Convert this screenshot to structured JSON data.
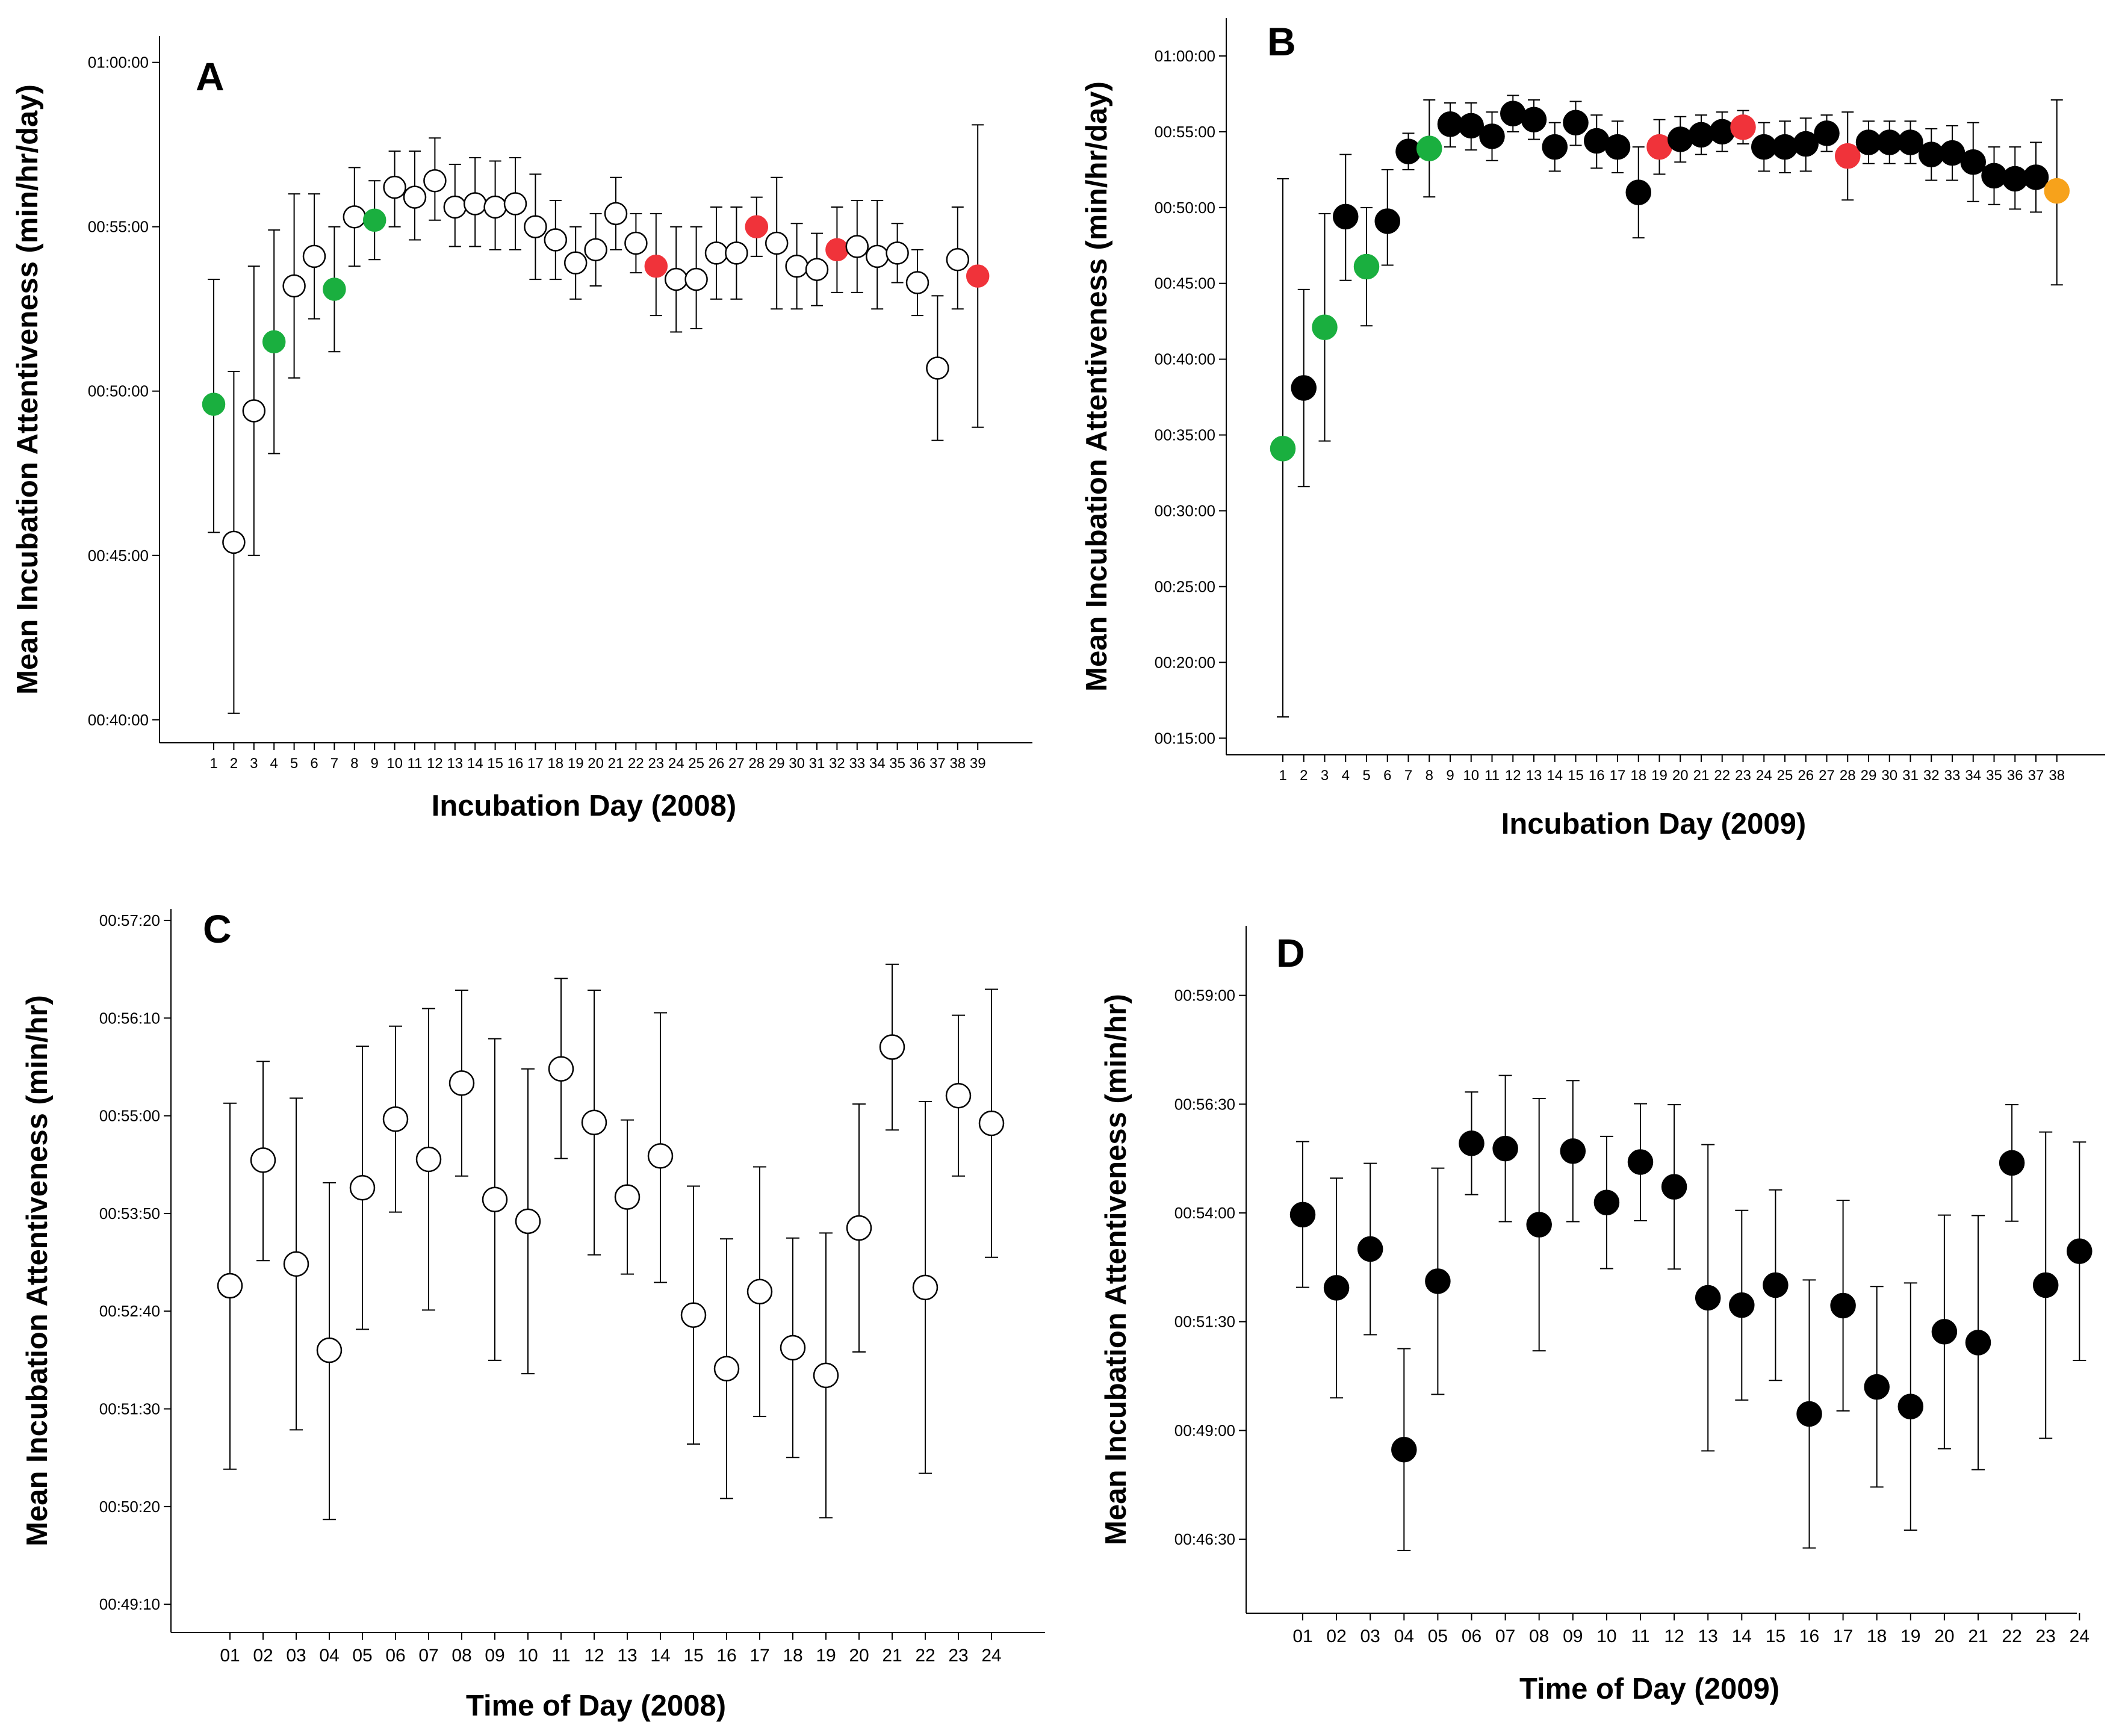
{
  "colors": {
    "open": "#ffffff",
    "filled": "#000000",
    "green": "#1aaf3f",
    "red": "#f0333a",
    "orange": "#f7a21b",
    "axis": "#000000"
  },
  "chart_data": [
    {
      "panel": "A",
      "type": "scatter",
      "title": "",
      "xlabel": "Incubation Day (2008)",
      "ylabel": "Mean Incubation Attentiveness (min/hr/day)",
      "y_unit": "minutes",
      "ylim": [
        39.3,
        60.8
      ],
      "yticks": [
        40,
        45,
        50,
        55,
        60
      ],
      "ytick_labels": [
        "00:40:00",
        "00:45:00",
        "00:50:00",
        "00:55:00",
        "01:00:00"
      ],
      "x": [
        "1",
        "2",
        "3",
        "4",
        "5",
        "6",
        "7",
        "8",
        "9",
        "10",
        "11",
        "12",
        "13",
        "14",
        "15",
        "16",
        "17",
        "18",
        "19",
        "20",
        "21",
        "22",
        "23",
        "24",
        "25",
        "26",
        "27",
        "28",
        "29",
        "30",
        "31",
        "32",
        "33",
        "34",
        "35",
        "36",
        "37",
        "38",
        "39"
      ],
      "values": [
        49.6,
        45.4,
        49.4,
        51.5,
        53.2,
        54.1,
        53.1,
        55.3,
        55.2,
        56.2,
        55.9,
        56.4,
        55.6,
        55.7,
        55.6,
        55.7,
        55.0,
        54.6,
        53.9,
        54.3,
        55.4,
        54.5,
        53.8,
        53.4,
        53.4,
        54.2,
        54.2,
        55.0,
        54.5,
        53.8,
        53.7,
        54.3,
        54.4,
        54.1,
        54.2,
        53.3,
        50.7,
        54.0,
        53.5
      ],
      "lower": [
        45.7,
        40.2,
        45.0,
        48.1,
        50.4,
        52.2,
        51.2,
        53.8,
        54.0,
        55.0,
        54.6,
        55.2,
        54.4,
        54.4,
        54.3,
        54.3,
        53.4,
        53.4,
        52.8,
        53.2,
        54.3,
        53.6,
        52.3,
        51.8,
        51.9,
        52.8,
        52.8,
        54.1,
        52.5,
        52.5,
        52.6,
        53.0,
        53.0,
        52.5,
        53.3,
        52.3,
        48.5,
        52.5,
        48.9
      ],
      "upper": [
        53.4,
        50.6,
        53.8,
        54.9,
        56.0,
        56.0,
        55.0,
        56.8,
        56.4,
        57.3,
        57.3,
        57.7,
        56.9,
        57.1,
        57.0,
        57.1,
        56.6,
        55.8,
        55.0,
        55.4,
        56.5,
        55.4,
        55.4,
        55.0,
        55.0,
        55.6,
        55.6,
        55.9,
        56.5,
        55.1,
        54.8,
        55.6,
        55.8,
        55.8,
        55.1,
        54.3,
        52.9,
        55.6,
        58.1
      ],
      "point_colors": [
        "green",
        "open",
        "open",
        "green",
        "open",
        "open",
        "green",
        "open",
        "green",
        "open",
        "open",
        "open",
        "open",
        "open",
        "open",
        "open",
        "open",
        "open",
        "open",
        "open",
        "open",
        "open",
        "red",
        "open",
        "open",
        "open",
        "open",
        "red",
        "open",
        "open",
        "open",
        "red",
        "open",
        "open",
        "open",
        "open",
        "open",
        "open",
        "red"
      ]
    },
    {
      "panel": "B",
      "type": "scatter",
      "title": "",
      "xlabel": "Incubation Day (2009)",
      "ylabel": "Mean Incubation Attentiveness (min/hr/day)",
      "y_unit": "minutes",
      "ylim": [
        13.9,
        62.5
      ],
      "yticks": [
        15,
        20,
        25,
        30,
        35,
        40,
        45,
        50,
        55,
        60
      ],
      "ytick_labels": [
        "00:15:00",
        "00:20:00",
        "00:25:00",
        "00:30:00",
        "00:35:00",
        "00:40:00",
        "00:45:00",
        "00:50:00",
        "00:55:00",
        "01:00:00"
      ],
      "x": [
        "1",
        "2",
        "3",
        "4",
        "5",
        "6",
        "7",
        "8",
        "9",
        "10",
        "11",
        "12",
        "13",
        "14",
        "15",
        "16",
        "17",
        "18",
        "19",
        "20",
        "21",
        "22",
        "23",
        "24",
        "25",
        "26",
        "27",
        "28",
        "29",
        "30",
        "31",
        "32",
        "33",
        "34",
        "35",
        "36",
        "37",
        "38"
      ],
      "values": [
        34.1,
        38.1,
        42.1,
        49.4,
        46.1,
        49.1,
        53.7,
        53.9,
        55.5,
        55.4,
        54.7,
        56.2,
        55.8,
        54.0,
        55.6,
        54.4,
        54.0,
        51.0,
        54.0,
        54.5,
        54.8,
        55.0,
        55.3,
        54.0,
        54.0,
        54.2,
        54.9,
        53.4,
        54.3,
        54.3,
        54.3,
        53.5,
        53.6,
        53.0,
        52.1,
        51.9,
        52.0,
        51.1
      ],
      "lower": [
        16.4,
        31.6,
        34.6,
        45.2,
        42.2,
        46.2,
        52.5,
        50.7,
        54.0,
        53.8,
        53.1,
        55.0,
        54.5,
        52.4,
        54.1,
        52.6,
        52.3,
        48.0,
        52.2,
        53.0,
        53.5,
        53.7,
        54.2,
        52.4,
        52.3,
        52.4,
        53.7,
        50.5,
        52.9,
        52.9,
        52.9,
        51.8,
        51.8,
        50.4,
        50.2,
        49.9,
        49.7,
        44.9
      ],
      "upper": [
        51.9,
        44.6,
        49.6,
        53.5,
        50.0,
        52.5,
        54.9,
        57.1,
        56.9,
        56.9,
        56.3,
        57.4,
        57.1,
        55.6,
        57.0,
        56.1,
        55.7,
        54.0,
        55.8,
        56.0,
        56.1,
        56.3,
        56.4,
        55.6,
        55.7,
        55.9,
        56.1,
        56.3,
        55.7,
        55.7,
        55.7,
        55.2,
        55.4,
        55.6,
        54.0,
        54.0,
        54.3,
        57.1
      ],
      "point_colors": [
        "green",
        "filled",
        "green",
        "filled",
        "green",
        "filled",
        "filled",
        "green",
        "filled",
        "filled",
        "filled",
        "filled",
        "filled",
        "filled",
        "filled",
        "filled",
        "filled",
        "filled",
        "red",
        "filled",
        "filled",
        "filled",
        "red",
        "filled",
        "filled",
        "filled",
        "filled",
        "red",
        "filled",
        "filled",
        "filled",
        "filled",
        "filled",
        "filled",
        "filled",
        "filled",
        "filled",
        "orange"
      ]
    },
    {
      "panel": "C",
      "type": "scatter",
      "title": "",
      "xlabel": "Time of Day (2008)",
      "ylabel": "Mean Incubation Attentiveness (min/hr)",
      "y_unit": "minutes",
      "ylim": [
        48.83,
        57.47
      ],
      "yticks": [
        49.1667,
        50.3333,
        51.5,
        52.6667,
        53.8333,
        55.0,
        56.1667,
        57.3333
      ],
      "ytick_labels": [
        "00:49:10",
        "00:50:20",
        "00:51:30",
        "00:52:40",
        "00:53:50",
        "00:55:00",
        "00:56:10",
        "00:57:20"
      ],
      "x": [
        "01",
        "02",
        "03",
        "04",
        "05",
        "06",
        "07",
        "08",
        "09",
        "10",
        "11",
        "12",
        "13",
        "14",
        "15",
        "16",
        "17",
        "18",
        "19",
        "20",
        "21",
        "22",
        "23",
        "24"
      ],
      "values": [
        52.97,
        54.47,
        53.23,
        52.2,
        54.14,
        54.96,
        54.48,
        55.39,
        54.0,
        53.74,
        55.56,
        54.92,
        54.03,
        54.52,
        52.62,
        51.98,
        52.9,
        52.23,
        51.9,
        53.66,
        55.82,
        52.95,
        55.24,
        54.91
      ],
      "lower": [
        50.78,
        53.27,
        51.25,
        50.18,
        52.45,
        53.85,
        52.68,
        54.28,
        52.08,
        51.92,
        54.49,
        53.34,
        53.11,
        53.01,
        51.08,
        50.43,
        51.41,
        50.92,
        50.2,
        52.18,
        54.83,
        50.73,
        54.28,
        53.31
      ],
      "upper": [
        55.15,
        55.65,
        55.21,
        54.2,
        55.83,
        56.07,
        56.28,
        56.5,
        55.92,
        55.56,
        56.64,
        56.5,
        54.95,
        56.23,
        54.16,
        53.53,
        54.39,
        53.54,
        53.6,
        55.14,
        56.81,
        55.17,
        56.2,
        56.51
      ],
      "point_colors": [
        "open",
        "open",
        "open",
        "open",
        "open",
        "open",
        "open",
        "open",
        "open",
        "open",
        "open",
        "open",
        "open",
        "open",
        "open",
        "open",
        "open",
        "open",
        "open",
        "open",
        "open",
        "open",
        "open",
        "open"
      ]
    },
    {
      "panel": "D",
      "type": "scatter",
      "title": "",
      "xlabel": "Time of Day (2009)",
      "ylabel": "Mean Incubation Attentiveness (min/hr)",
      "y_unit": "minutes",
      "ylim": [
        44.8,
        60.6
      ],
      "yticks": [
        46.5,
        49.0,
        51.5,
        54.0,
        56.5,
        59.0
      ],
      "ytick_labels": [
        "00:46:30",
        "00:49:00",
        "00:51:30",
        "00:54:00",
        "00:56:30",
        "00:59:00"
      ],
      "x": [
        "01",
        "02",
        "03",
        "04",
        "05",
        "06",
        "07",
        "08",
        "09",
        "10",
        "11",
        "12",
        "13",
        "14",
        "15",
        "16",
        "17",
        "18",
        "19",
        "20",
        "21",
        "22",
        "23",
        "24"
      ],
      "values": [
        53.96,
        52.28,
        53.17,
        48.56,
        52.43,
        55.6,
        55.48,
        53.73,
        55.42,
        54.24,
        55.17,
        54.6,
        52.05,
        51.88,
        52.34,
        49.38,
        51.87,
        50.0,
        49.55,
        51.27,
        51.02,
        55.15,
        52.34,
        53.12
      ],
      "lower": [
        52.29,
        49.75,
        51.2,
        46.24,
        49.83,
        54.42,
        53.8,
        50.83,
        53.8,
        52.72,
        53.82,
        52.71,
        48.53,
        49.7,
        50.15,
        46.3,
        49.45,
        47.7,
        46.71,
        48.58,
        48.1,
        53.81,
        48.82,
        50.61
      ],
      "upper": [
        55.64,
        54.8,
        55.14,
        50.88,
        55.03,
        56.78,
        57.16,
        56.63,
        57.04,
        55.76,
        56.51,
        56.49,
        55.57,
        54.06,
        54.53,
        52.46,
        54.29,
        52.31,
        52.39,
        53.95,
        53.94,
        56.49,
        55.86,
        55.63
      ],
      "point_colors": [
        "filled",
        "filled",
        "filled",
        "filled",
        "filled",
        "filled",
        "filled",
        "filled",
        "filled",
        "filled",
        "filled",
        "filled",
        "filled",
        "filled",
        "filled",
        "filled",
        "filled",
        "filled",
        "filled",
        "filled",
        "filled",
        "filled",
        "filled",
        "filled"
      ]
    }
  ]
}
